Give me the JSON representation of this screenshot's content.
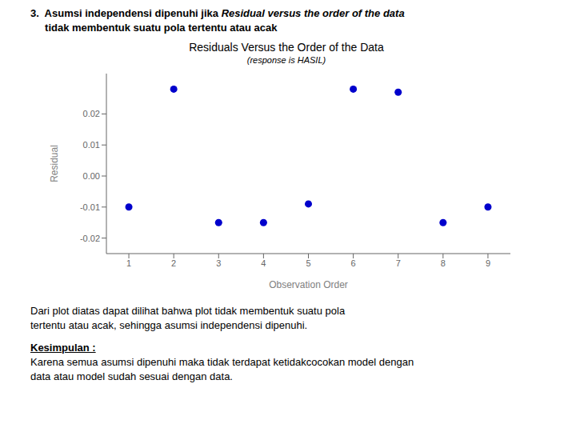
{
  "chart_data": {
    "type": "scatter",
    "title": "Residuals Versus the Order of the Data",
    "subtitle": "(response is HASIL)",
    "xlabel": "Observation Order",
    "ylabel": "Residual",
    "x": [
      1,
      2,
      3,
      4,
      5,
      6,
      7,
      8,
      9
    ],
    "values": [
      -0.01,
      0.028,
      -0.015,
      -0.015,
      -0.009,
      0.028,
      0.027,
      -0.015,
      -0.01
    ],
    "color": "#0000CC",
    "xlim": [
      0.5,
      9.5
    ],
    "ylim": [
      -0.025,
      0.033
    ],
    "xticks": [
      1,
      2,
      3,
      4,
      5,
      6,
      7,
      8,
      9
    ],
    "yticks": [
      -0.02,
      -0.01,
      {
        "value": 0,
        "label": "0.00"
      },
      0.01,
      0.02
    ],
    "grid": false,
    "annotations": [
      "3.  Asumsi independensi dipenuhi jika ",
      "Residual versus the order of the data",
      "     tidak membentuk suatu pola tertentu atau acak",
      "Dari plot diatas dapat dilihat bahwa plot tidak membentuk suatu pola",
      "tertentu atau acak, sehingga asumsi independensi dipenuhi.",
      "Kesimpulan :",
      "Karena semua asumsi dipenuhi maka tidak terdapat ketidakcocokan model dengan",
      "data atau model sudah sesuai dengan data."
    ]
  }
}
